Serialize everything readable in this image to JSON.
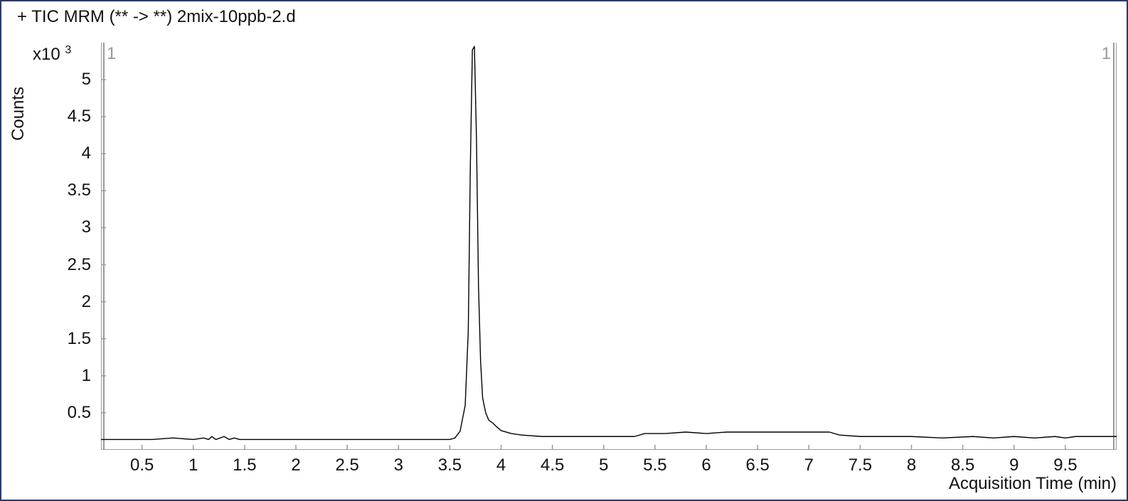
{
  "chart": {
    "type": "line",
    "title": "+ TIC MRM (** -> **) 2mix-10ppb-2.d",
    "ylabel": "Counts",
    "xlabel": "Acquisition Time (min)",
    "y_exponent_prefix": "x10",
    "y_exponent": "3",
    "xlim": [
      0.1,
      10.0
    ],
    "ylim": [
      0.0,
      5.5
    ],
    "xticks": [
      0.5,
      1,
      1.5,
      2,
      2.5,
      3,
      3.5,
      4,
      4.5,
      5,
      5.5,
      6,
      6.5,
      7,
      7.5,
      8,
      8.5,
      9,
      9.5
    ],
    "xtick_labels": [
      "0.5",
      "1",
      "1.5",
      "2",
      "2.5",
      "3",
      "3.5",
      "4",
      "4.5",
      "5",
      "5.5",
      "6",
      "6.5",
      "7",
      "7.5",
      "8",
      "8.5",
      "9",
      "9.5"
    ],
    "yticks": [
      0.5,
      1,
      1.5,
      2,
      2.5,
      3,
      3.5,
      4,
      4.5,
      5
    ],
    "ytick_labels": [
      "0.5",
      "1",
      "1.5",
      "2",
      "2.5",
      "3",
      "3.5",
      "4",
      "4.5",
      "5"
    ],
    "segment_labels": [
      "1",
      "1"
    ],
    "line_color": "#000000",
    "line_width": 1.4,
    "axis_color": "#9a9a9a",
    "axis_width": 2,
    "tick_length": 7,
    "background_color": "#ffffff",
    "border_color": "#2e3a66",
    "title_fontsize": 24,
    "label_fontsize": 24,
    "tick_fontsize": 24,
    "series": {
      "x": [
        0.1,
        0.12,
        0.5,
        0.6,
        0.8,
        1.0,
        1.1,
        1.15,
        1.18,
        1.22,
        1.3,
        1.35,
        1.4,
        1.45,
        1.8,
        2.0,
        2.5,
        3.0,
        3.3,
        3.5,
        3.55,
        3.6,
        3.65,
        3.68,
        3.7,
        3.72,
        3.74,
        3.76,
        3.78,
        3.8,
        3.82,
        3.85,
        3.88,
        3.92,
        3.95,
        4.0,
        4.1,
        4.2,
        4.4,
        4.6,
        5.0,
        5.3,
        5.4,
        5.6,
        5.8,
        6.0,
        6.2,
        6.4,
        6.7,
        7.0,
        7.2,
        7.3,
        7.5,
        7.7,
        8.0,
        8.3,
        8.6,
        8.8,
        9.0,
        9.2,
        9.4,
        9.5,
        9.6,
        9.8,
        10.0
      ],
      "y": [
        0.14,
        0.14,
        0.14,
        0.14,
        0.16,
        0.14,
        0.16,
        0.14,
        0.18,
        0.14,
        0.18,
        0.14,
        0.16,
        0.14,
        0.14,
        0.14,
        0.14,
        0.14,
        0.14,
        0.14,
        0.16,
        0.25,
        0.6,
        1.6,
        3.8,
        5.4,
        5.45,
        4.2,
        2.2,
        1.2,
        0.7,
        0.5,
        0.4,
        0.36,
        0.32,
        0.26,
        0.22,
        0.2,
        0.18,
        0.18,
        0.18,
        0.18,
        0.22,
        0.22,
        0.24,
        0.22,
        0.24,
        0.24,
        0.24,
        0.24,
        0.24,
        0.2,
        0.18,
        0.18,
        0.18,
        0.16,
        0.18,
        0.16,
        0.18,
        0.16,
        0.18,
        0.16,
        0.18,
        0.18,
        0.18
      ]
    }
  }
}
